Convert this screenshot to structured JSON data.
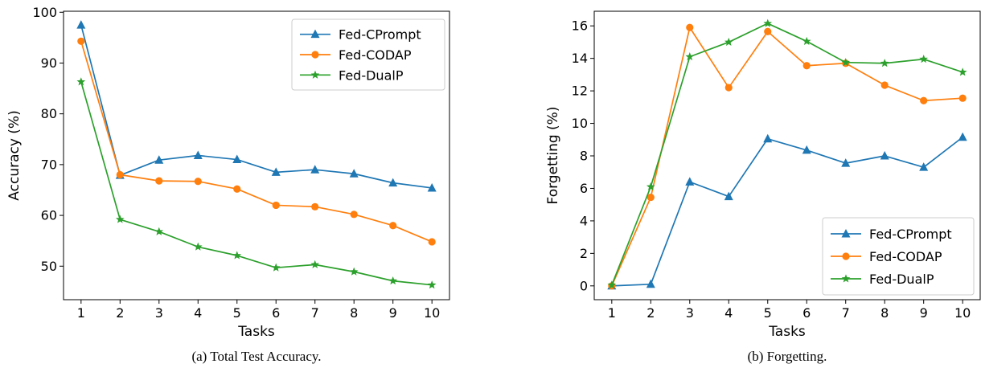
{
  "chart_data": [
    {
      "type": "line",
      "caption": "(a) Total Test Accuracy.",
      "xlabel": "Tasks",
      "ylabel": "Accuracy (%)",
      "x": [
        1,
        2,
        3,
        4,
        5,
        6,
        7,
        8,
        9,
        10
      ],
      "xticks": [
        "1",
        "2",
        "3",
        "4",
        "5",
        "6",
        "7",
        "8",
        "9",
        "10"
      ],
      "yticks": [
        50,
        60,
        70,
        80,
        90,
        100
      ],
      "ylim": [
        43.4,
        100.2
      ],
      "grid": false,
      "legend_position": "top-right",
      "series": [
        {
          "name": "Fed-CPrompt",
          "color": "#1f77b4",
          "marker": "triangle",
          "values": [
            97.5,
            67.9,
            70.9,
            71.8,
            71.0,
            68.5,
            69.0,
            68.2,
            66.4,
            65.4
          ]
        },
        {
          "name": "Fed-CODAP",
          "color": "#ff7f0e",
          "marker": "circle",
          "values": [
            94.3,
            68.0,
            66.8,
            66.7,
            65.2,
            62.0,
            61.7,
            60.2,
            58.0,
            54.8
          ]
        },
        {
          "name": "Fed-DualP",
          "color": "#2ca02c",
          "marker": "star",
          "values": [
            86.3,
            59.2,
            56.8,
            53.8,
            52.1,
            49.7,
            50.3,
            48.9,
            47.1,
            46.3
          ]
        }
      ]
    },
    {
      "type": "line",
      "caption": "(b) Forgetting.",
      "xlabel": "Tasks",
      "ylabel": "Forgetting (%)",
      "x": [
        1,
        2,
        3,
        4,
        5,
        6,
        7,
        8,
        9,
        10
      ],
      "xticks": [
        "1",
        "2",
        "3",
        "4",
        "5",
        "6",
        "7",
        "8",
        "9",
        "10"
      ],
      "yticks": [
        0,
        2,
        4,
        6,
        8,
        10,
        12,
        14,
        16
      ],
      "ylim": [
        -0.85,
        16.9
      ],
      "grid": false,
      "legend_position": "bottom-right",
      "series": [
        {
          "name": "Fed-CPrompt",
          "color": "#1f77b4",
          "marker": "triangle",
          "values": [
            0.0,
            0.1,
            6.4,
            5.5,
            9.05,
            8.35,
            7.55,
            8.0,
            7.3,
            9.15
          ]
        },
        {
          "name": "Fed-CODAP",
          "color": "#ff7f0e",
          "marker": "circle",
          "values": [
            0.0,
            5.45,
            15.9,
            12.2,
            15.65,
            13.55,
            13.7,
            12.35,
            11.4,
            11.55
          ]
        },
        {
          "name": "Fed-DualP",
          "color": "#2ca02c",
          "marker": "star",
          "values": [
            0.05,
            6.1,
            14.1,
            15.0,
            16.15,
            15.05,
            13.75,
            13.7,
            13.95,
            13.15
          ]
        }
      ]
    }
  ]
}
